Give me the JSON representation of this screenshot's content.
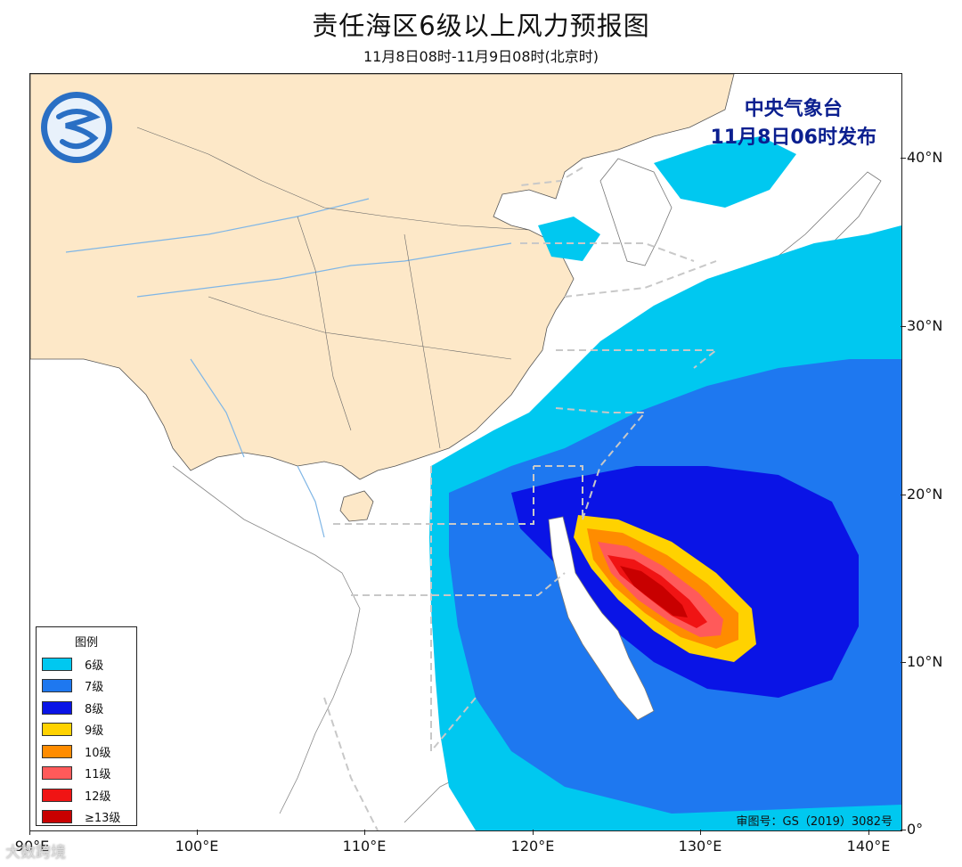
{
  "title": "责任海区6级以上风力预报图",
  "subtitle": "11月8日08时-11月9日08时(北京时)",
  "issuer": {
    "line1": "中央气象台",
    "line2": "11月8日06时发布"
  },
  "logo_icon": "cma-logo-icon",
  "legend": {
    "title": "图例",
    "items": [
      {
        "label": "6级",
        "color": "#00c8f0"
      },
      {
        "label": "7级",
        "color": "#1e78f0"
      },
      {
        "label": "8级",
        "color": "#0a14e6"
      },
      {
        "label": "9级",
        "color": "#ffd200"
      },
      {
        "label": "10级",
        "color": "#ff8c00"
      },
      {
        "label": "11级",
        "color": "#ff5a5a"
      },
      {
        "label": "12级",
        "color": "#f01414"
      },
      {
        "label": "≥13级",
        "color": "#c80000"
      }
    ]
  },
  "review_number": "审图号：GS（2019）3082号",
  "axes": {
    "x_ticks": [
      "90°E",
      "100°E",
      "110°E",
      "120°E",
      "130°E",
      "140°E"
    ],
    "y_ticks": [
      "40°N",
      "30°N",
      "20°N",
      "10°N",
      "0°"
    ]
  },
  "colors": {
    "land": "#fde8c8",
    "sea": "#ffffff",
    "boundary": "#666666",
    "river": "#7fb6e6",
    "zone_line": "#c8c8c8"
  },
  "watermark": "大数跨境"
}
